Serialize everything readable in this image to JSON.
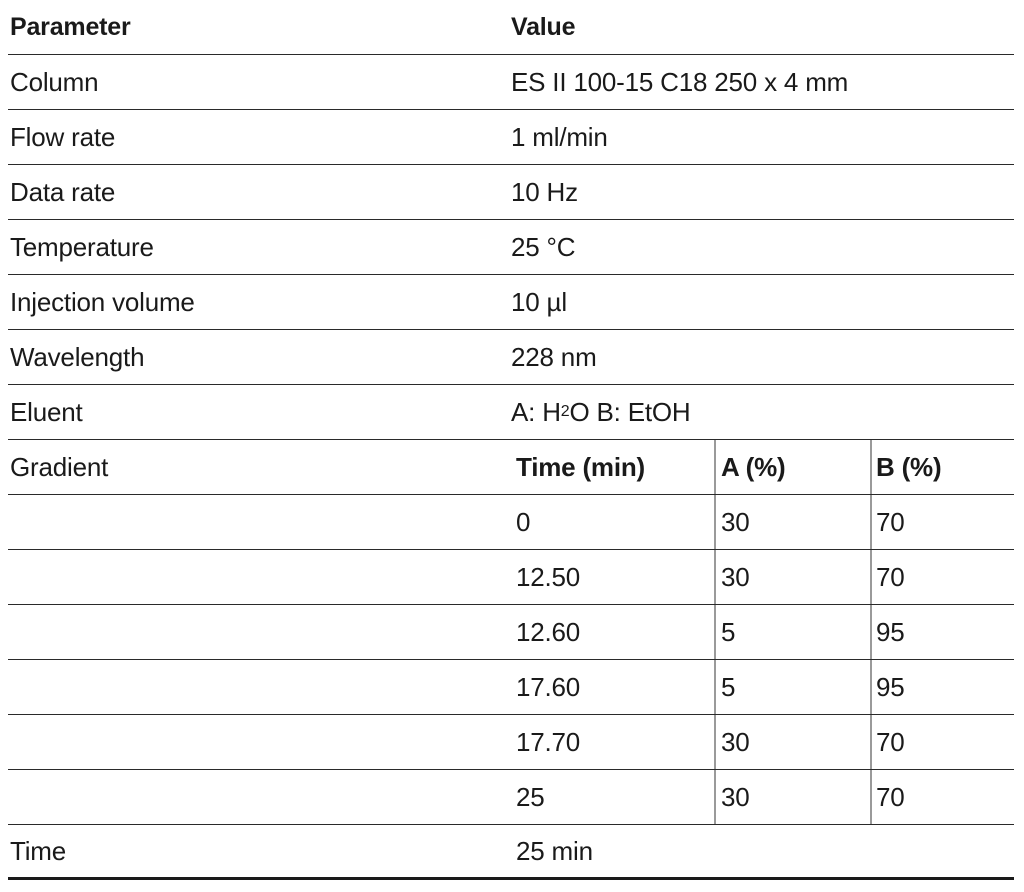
{
  "header": {
    "parameter": "Parameter",
    "value": "Value"
  },
  "rows": [
    {
      "parameter": "Column",
      "value": "ES II 100-15 C18 250 x 4 mm"
    },
    {
      "parameter": "Flow rate",
      "value": "1 ml/min"
    },
    {
      "parameter": "Data rate",
      "value": "10 Hz"
    },
    {
      "parameter": "Temperature",
      "value": "25 °C"
    },
    {
      "parameter": "Injection volume",
      "value": "10 µl"
    },
    {
      "parameter": "Wavelength",
      "value": "228 nm"
    }
  ],
  "eluent": {
    "parameter": "Eluent",
    "value_a_prefix": "A: H",
    "value_sub": "2",
    "value_a_suffix": "O B: EtOH"
  },
  "gradient": {
    "parameter": "Gradient",
    "headers": {
      "time": "Time (min)",
      "a": "A (%)",
      "b": "B (%)"
    },
    "rows": [
      {
        "time": "0",
        "a": "30",
        "b": "70"
      },
      {
        "time": "12.50",
        "a": "30",
        "b": "70"
      },
      {
        "time": "12.60",
        "a": "5",
        "b": "95"
      },
      {
        "time": "17.60",
        "a": "5",
        "b": "95"
      },
      {
        "time": "17.70",
        "a": "30",
        "b": "70"
      },
      {
        "time": "25",
        "a": "30",
        "b": "70"
      }
    ]
  },
  "time_row": {
    "parameter": "Time",
    "value": "25 min"
  }
}
